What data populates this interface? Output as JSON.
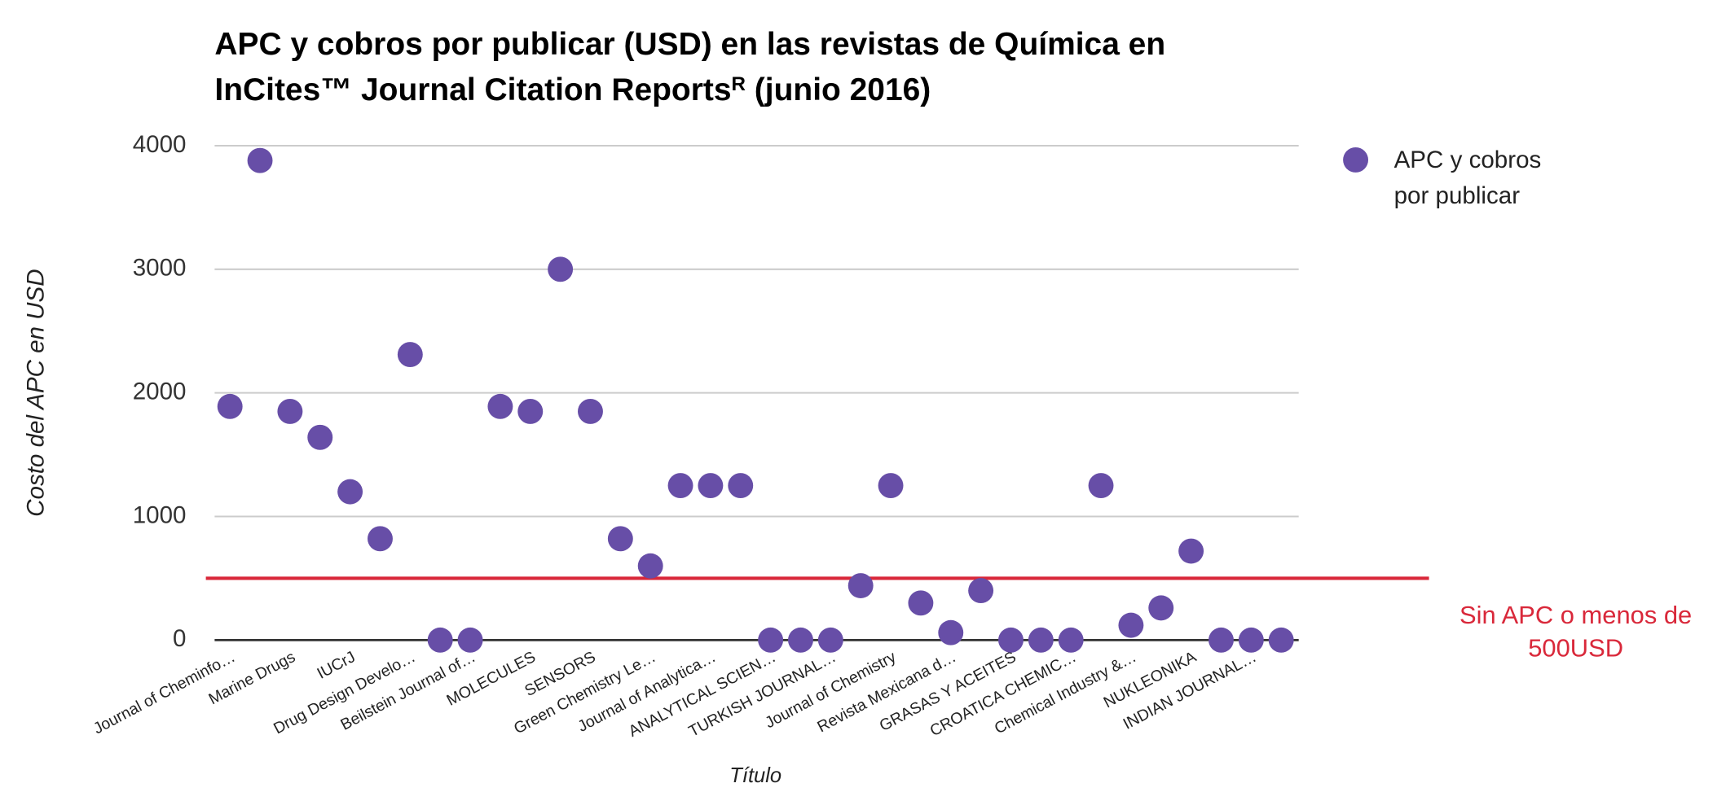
{
  "chart_data": {
    "type": "scatter",
    "title": [
      "APC y cobros por publicar (USD) en las revistas de Química en",
      "InCites™ Journal Citation Reports",
      "R",
      " (junio 2016)"
    ],
    "x_label": "Título",
    "y_label": "Costo del APC en USD",
    "categories": [
      "Journal of Cheminfo…",
      null,
      "Marine Drugs",
      null,
      "IUCrJ",
      null,
      "Drug Design Develo…",
      null,
      "Beilstein Journal of…",
      null,
      "MOLECULES",
      null,
      "SENSORS",
      null,
      "Green Chemistry Le…",
      null,
      "Journal of Analytica…",
      null,
      "ANALYTICAL SCIEN…",
      null,
      "TURKISH JOURNAL…",
      null,
      "Journal of Chemistry",
      null,
      "Revista Mexicana d…",
      null,
      "GRASAS Y ACEITES",
      null,
      "CROATICA CHEMIC…",
      null,
      "Chemical Industry &…",
      null,
      "NUKLEONIKA",
      null,
      "INDIAN JOURNAL…",
      null
    ],
    "series": [
      {
        "name": "APC y cobros por publicar",
        "color": "#674ea7",
        "values": [
          1890,
          3880,
          1850,
          1640,
          1200,
          820,
          2310,
          0,
          0,
          1890,
          1850,
          3000,
          1850,
          820,
          600,
          1250,
          1250,
          1250,
          0,
          0,
          0,
          440,
          1250,
          300,
          60,
          400,
          0,
          0,
          0,
          1250,
          120,
          260,
          720,
          0,
          0,
          0
        ]
      }
    ],
    "ylim": [
      0,
      4000
    ],
    "yticks": [
      0,
      1000,
      2000,
      3000,
      4000
    ],
    "grid": true,
    "legend": "right",
    "threshold": {
      "value": 500,
      "color": "#d9283a",
      "label": "Sin APC o menos de 500USD"
    }
  }
}
